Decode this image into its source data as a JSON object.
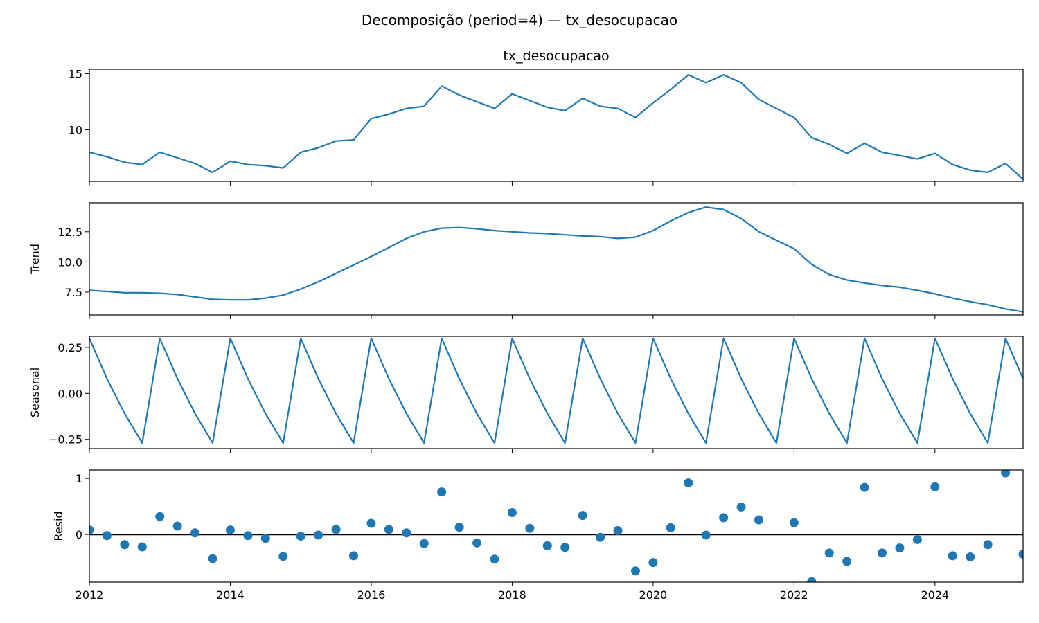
{
  "chart_data": {
    "type": "line",
    "title": "Decomposição (period=4) — tx_desocupacao",
    "x_start": "2012-01",
    "x_step": "quarter",
    "xlim": [
      "2012-01",
      "2025-04"
    ],
    "x_tick_labels": [
      "2012",
      "2014",
      "2016",
      "2018",
      "2020",
      "2022",
      "2024"
    ],
    "line_color": "#1f77b4",
    "panels": [
      {
        "name": "observed",
        "title": "tx_desocupacao",
        "ylabel": "",
        "kind": "line",
        "ylim": [
          5.4,
          15.4
        ],
        "yticks": [
          10,
          15
        ],
        "ytick_labels": [
          "10",
          "15"
        ],
        "values": [
          8.0,
          7.6,
          7.1,
          6.9,
          8.0,
          7.5,
          7.0,
          6.2,
          7.2,
          6.9,
          6.8,
          6.6,
          8.0,
          8.4,
          9.0,
          9.1,
          11.0,
          11.4,
          11.9,
          12.1,
          13.9,
          13.1,
          12.5,
          11.9,
          13.2,
          12.6,
          12.0,
          11.7,
          12.8,
          12.1,
          11.9,
          11.1,
          12.4,
          13.6,
          14.9,
          14.2,
          14.9,
          14.2,
          12.7,
          11.9,
          11.1,
          9.3,
          8.7,
          7.9,
          8.8,
          8.0,
          7.7,
          7.4,
          7.9,
          6.9,
          6.4,
          6.2,
          7.0,
          5.6
        ]
      },
      {
        "name": "trend",
        "title": "",
        "ylabel": "Trend",
        "kind": "line",
        "ylim": [
          5.6,
          14.9
        ],
        "yticks": [
          7.5,
          10.0,
          12.5
        ],
        "ytick_labels": [
          "7.5",
          "10.0",
          "12.5"
        ],
        "values": [
          7.65,
          7.55,
          7.45,
          7.45,
          7.4,
          7.3,
          7.1,
          6.9,
          6.85,
          6.85,
          7.0,
          7.25,
          7.75,
          8.35,
          9.05,
          9.75,
          10.45,
          11.2,
          11.95,
          12.5,
          12.8,
          12.85,
          12.75,
          12.6,
          12.5,
          12.4,
          12.35,
          12.25,
          12.15,
          12.1,
          11.95,
          12.05,
          12.6,
          13.4,
          14.1,
          14.55,
          14.35,
          13.6,
          12.5,
          11.8,
          11.1,
          9.8,
          8.95,
          8.5,
          8.25,
          8.05,
          7.9,
          7.65,
          7.35,
          7.0,
          6.7,
          6.45,
          6.1,
          5.85
        ]
      },
      {
        "name": "seasonal",
        "title": "",
        "ylabel": "Seasonal",
        "kind": "line",
        "ylim": [
          -0.3,
          0.31
        ],
        "yticks": [
          -0.25,
          0.0,
          0.25
        ],
        "ytick_labels": [
          "−0.25",
          "0.00",
          "0.25"
        ],
        "pattern": [
          0.3,
          0.08,
          -0.11,
          -0.27
        ],
        "values": [
          0.3,
          0.08,
          -0.11,
          -0.27,
          0.3,
          0.08,
          -0.11,
          -0.27,
          0.3,
          0.08,
          -0.11,
          -0.27,
          0.3,
          0.08,
          -0.11,
          -0.27,
          0.3,
          0.08,
          -0.11,
          -0.27,
          0.3,
          0.08,
          -0.11,
          -0.27,
          0.3,
          0.08,
          -0.11,
          -0.27,
          0.3,
          0.08,
          -0.11,
          -0.27,
          0.3,
          0.08,
          -0.11,
          -0.27,
          0.3,
          0.08,
          -0.11,
          -0.27,
          0.3,
          0.08,
          -0.11,
          -0.27,
          0.3,
          0.08,
          -0.11,
          -0.27,
          0.3,
          0.08,
          -0.11,
          -0.27,
          0.3,
          0.08
        ]
      },
      {
        "name": "resid",
        "title": "",
        "ylabel": "Resid",
        "kind": "scatter",
        "zero_line": true,
        "ylim": [
          -0.85,
          1.15
        ],
        "yticks": [
          0,
          1
        ],
        "ytick_labels": [
          "0",
          "1"
        ],
        "values": [
          0.08,
          -0.02,
          -0.18,
          -0.22,
          0.32,
          0.15,
          0.03,
          -0.43,
          0.08,
          -0.02,
          -0.07,
          -0.39,
          -0.03,
          -0.01,
          0.09,
          -0.38,
          0.2,
          0.09,
          0.03,
          -0.16,
          0.76,
          0.13,
          -0.15,
          -0.44,
          0.39,
          0.11,
          -0.2,
          -0.23,
          0.34,
          -0.05,
          0.07,
          -0.65,
          -0.5,
          0.12,
          0.92,
          -0.01,
          0.3,
          0.49,
          0.26,
          null,
          0.21,
          -0.84,
          -0.33,
          -0.48,
          0.84,
          -0.33,
          -0.24,
          -0.09,
          0.85,
          -0.38,
          -0.4,
          -0.18,
          1.1,
          -0.35
        ]
      }
    ]
  }
}
